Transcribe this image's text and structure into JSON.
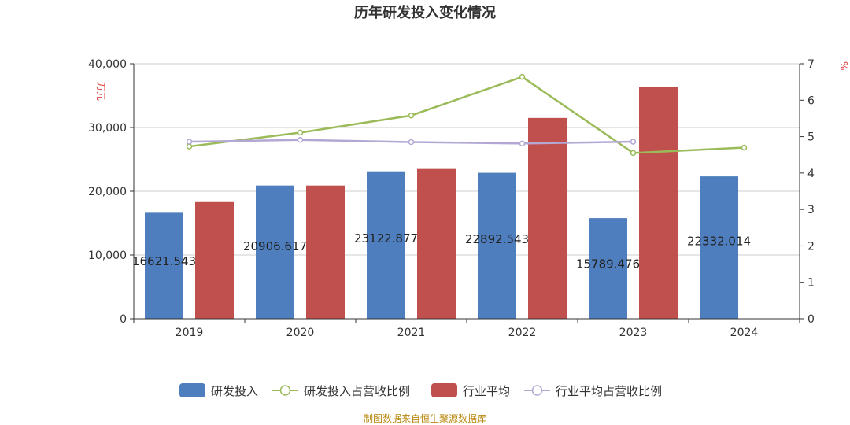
{
  "chart_data": {
    "type": "bar",
    "title": "历年研发投入变化情况",
    "categories": [
      "2019",
      "2020",
      "2021",
      "2022",
      "2023",
      "2024"
    ],
    "left_axis": {
      "unit": "万元",
      "ylim": [
        0,
        40000
      ],
      "ticks": [
        0,
        10000,
        20000,
        30000,
        40000
      ],
      "tick_labels": [
        "0",
        "10,000",
        "20,000",
        "30,000",
        "40,000"
      ]
    },
    "right_axis": {
      "unit": "%",
      "ylim": [
        0,
        7
      ],
      "ticks": [
        0,
        1,
        2,
        3,
        4,
        5,
        6,
        7
      ],
      "tick_labels": [
        "0",
        "1",
        "2",
        "3",
        "4",
        "5",
        "6",
        "7"
      ]
    },
    "series": [
      {
        "name": "研发投入",
        "kind": "bar",
        "axis": "left",
        "color": "#4e7ebd",
        "values": [
          16621.543,
          20906.617,
          23122.877,
          22892.543,
          15789.476,
          22332.014
        ],
        "labels": [
          "16621.543",
          "20906.617",
          "23122.877",
          "22892.543",
          "15789.476",
          "22332.014"
        ]
      },
      {
        "name": "研发投入占营收比例",
        "kind": "line",
        "axis": "right",
        "color": "#9bbb59",
        "values": [
          4.73,
          5.11,
          5.58,
          6.64,
          4.55,
          4.7
        ]
      },
      {
        "name": "行业平均",
        "kind": "bar",
        "axis": "left",
        "color": "#c0504d",
        "values": [
          18300,
          20900,
          23500,
          31500,
          36300,
          null
        ]
      },
      {
        "name": "行业平均占营收比例",
        "kind": "line",
        "axis": "right",
        "color": "#b3a8d4",
        "values": [
          4.86,
          4.91,
          4.85,
          4.81,
          4.86,
          null
        ]
      }
    ],
    "legend": [
      "研发投入",
      "研发投入占营收比例",
      "行业平均",
      "行业平均占营收比例"
    ],
    "source": "制图数据来自恒生聚源数据库"
  }
}
